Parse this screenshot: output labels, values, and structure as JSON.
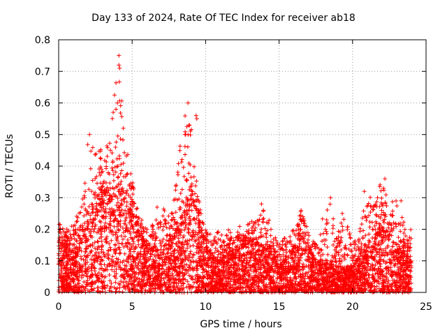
{
  "chart_data": {
    "type": "scatter",
    "title": "Day 133 of 2024, Rate Of TEC Index for receiver ab18",
    "xlabel": "GPS time / hours",
    "ylabel": "ROTI / TECUs",
    "xlim": [
      0,
      25
    ],
    "ylim": [
      0,
      0.8
    ],
    "xticks": [
      "0",
      "5",
      "10",
      "15",
      "20",
      "25"
    ],
    "yticks": [
      "0",
      "0.1",
      "0.2",
      "0.3",
      "0.4",
      "0.5",
      "0.6",
      "0.7",
      "0.8"
    ],
    "grid": true,
    "marker": "plus",
    "color": "#ff0000",
    "envelope": {
      "x": [
        0,
        0.5,
        1,
        1.5,
        2,
        2.5,
        3,
        3.5,
        4,
        4.5,
        5,
        5.5,
        6,
        6.5,
        7,
        7.5,
        8,
        8.5,
        9,
        9.5,
        10,
        10.5,
        11,
        11.5,
        12,
        12.5,
        13,
        13.5,
        14,
        14.5,
        15,
        15.5,
        16,
        16.5,
        17,
        17.5,
        18,
        18.5,
        19,
        19.5,
        20,
        20.5,
        21,
        21.5,
        22,
        22.5,
        23,
        23.5,
        24
      ],
      "dense_top": [
        0.16,
        0.14,
        0.13,
        0.15,
        0.22,
        0.3,
        0.32,
        0.3,
        0.35,
        0.3,
        0.25,
        0.18,
        0.14,
        0.13,
        0.14,
        0.16,
        0.2,
        0.25,
        0.3,
        0.24,
        0.14,
        0.1,
        0.1,
        0.12,
        0.12,
        0.15,
        0.16,
        0.15,
        0.14,
        0.12,
        0.1,
        0.1,
        0.13,
        0.2,
        0.12,
        0.1,
        0.09,
        0.09,
        0.08,
        0.08,
        0.08,
        0.12,
        0.15,
        0.18,
        0.2,
        0.18,
        0.14,
        0.12,
        0.1
      ],
      "sparse_top": [
        0.22,
        0.2,
        0.22,
        0.28,
        0.5,
        0.48,
        0.47,
        0.5,
        0.75,
        0.5,
        0.36,
        0.25,
        0.2,
        0.22,
        0.27,
        0.25,
        0.35,
        0.6,
        0.56,
        0.3,
        0.2,
        0.18,
        0.2,
        0.2,
        0.18,
        0.23,
        0.22,
        0.25,
        0.28,
        0.2,
        0.18,
        0.18,
        0.2,
        0.26,
        0.2,
        0.15,
        0.25,
        0.3,
        0.2,
        0.25,
        0.15,
        0.2,
        0.32,
        0.3,
        0.36,
        0.28,
        0.3,
        0.22,
        0.2
      ]
    },
    "outliers": [
      {
        "x": 4.1,
        "y": 0.75
      },
      {
        "x": 4.1,
        "y": 0.72
      },
      {
        "x": 4.15,
        "y": 0.71
      },
      {
        "x": 3.8,
        "y": 0.625
      },
      {
        "x": 4.0,
        "y": 0.6
      },
      {
        "x": 3.9,
        "y": 0.58
      },
      {
        "x": 8.8,
        "y": 0.6
      },
      {
        "x": 9.35,
        "y": 0.56
      },
      {
        "x": 9.4,
        "y": 0.55
      },
      {
        "x": 2.1,
        "y": 0.5
      },
      {
        "x": 4.4,
        "y": 0.52
      },
      {
        "x": 8.6,
        "y": 0.5
      },
      {
        "x": 8.9,
        "y": 0.53
      },
      {
        "x": 6.7,
        "y": 0.27
      },
      {
        "x": 18.5,
        "y": 0.3
      },
      {
        "x": 19.3,
        "y": 0.25
      },
      {
        "x": 22.2,
        "y": 0.36
      },
      {
        "x": 22.1,
        "y": 0.33
      },
      {
        "x": 21.7,
        "y": 0.3
      },
      {
        "x": 20.8,
        "y": 0.32
      },
      {
        "x": 23.3,
        "y": 0.29
      },
      {
        "x": 13.8,
        "y": 0.28
      },
      {
        "x": 16.5,
        "y": 0.26
      }
    ]
  }
}
